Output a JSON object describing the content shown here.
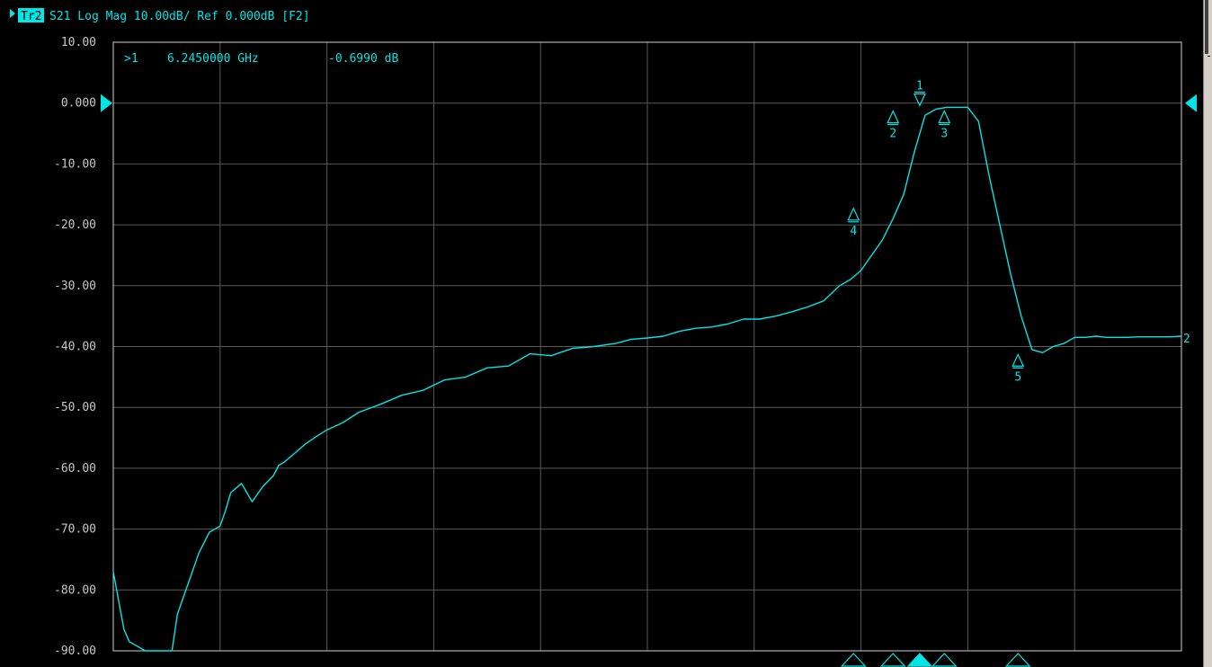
{
  "colors": {
    "trace": "#00e5e5",
    "grid": "#5a5a5a",
    "frame": "#cfcfcf",
    "label": "#c8c8c8",
    "background": "#000000"
  },
  "header": {
    "trace_tag": "Tr2",
    "description": "S21 Log Mag 10.00dB/ Ref 0.000dB [F2]"
  },
  "marker_readout": {
    "active_marker": ">1",
    "frequency": "6.2450000 GHz",
    "value": "-0.6990 dB"
  },
  "end_label": "2",
  "chart_data": {
    "type": "line",
    "y_tick_labels": [
      "10.00",
      "0.000",
      "-10.00",
      "-20.00",
      "-30.00",
      "-40.00",
      "-50.00",
      "-60.00",
      "-70.00",
      "-80.00",
      "-90.00"
    ],
    "ylim": [
      -90,
      10
    ],
    "y_per_div": 10,
    "x_divisions": 10,
    "reference_level": 0,
    "grid": true,
    "series": [
      {
        "trace": "Tr2 S21",
        "x": [
          0,
          0.1,
          0.15,
          0.3,
          0.45,
          0.55,
          0.6,
          0.7,
          0.8,
          0.9,
          1.0,
          1.05,
          1.1,
          1.2,
          1.3,
          1.4,
          1.5,
          1.55,
          1.6,
          1.7,
          1.8,
          1.9,
          2.0,
          2.15,
          2.3,
          2.5,
          2.7,
          2.9,
          3.1,
          3.3,
          3.5,
          3.7,
          3.9,
          4.1,
          4.3,
          4.5,
          4.7,
          4.85,
          5.0,
          5.15,
          5.3,
          5.45,
          5.6,
          5.75,
          5.9,
          6.05,
          6.2,
          6.35,
          6.5,
          6.65,
          6.8,
          6.9,
          7.0,
          7.1,
          7.2,
          7.3,
          7.4,
          7.5,
          7.6,
          7.7,
          7.8,
          7.9,
          8.0,
          8.1,
          8.2,
          8.3,
          8.4,
          8.5,
          8.6,
          8.7,
          8.8,
          8.9,
          9.0,
          9.1,
          9.2,
          9.3,
          9.4,
          9.5,
          9.6,
          9.7,
          9.8,
          9.9,
          10.0
        ],
        "y": [
          -77,
          -86.5,
          -88.5,
          -90,
          -90,
          -90,
          -84,
          -79,
          -74,
          -70.5,
          -69.5,
          -67,
          -64,
          -62.5,
          -65.5,
          -63,
          -61.2,
          -59.5,
          -59,
          -57.5,
          -56,
          -54.8,
          -53.7,
          -52.5,
          -50.8,
          -49.5,
          -48,
          -47.2,
          -45.5,
          -45,
          -43.5,
          -43.2,
          -41.2,
          -41.5,
          -40.3,
          -40,
          -39.5,
          -38.8,
          -38.6,
          -38.3,
          -37.5,
          -37,
          -36.8,
          -36.3,
          -35.5,
          -35.5,
          -35,
          -34.3,
          -33.5,
          -32.5,
          -30,
          -29,
          -27.5,
          -25,
          -22.5,
          -19,
          -15,
          -8,
          -2,
          -1,
          -0.7,
          -0.7,
          -0.7,
          -3,
          -12,
          -20,
          -28,
          -35,
          -40.5,
          -41,
          -40,
          -39.5,
          -38.5,
          -38.5,
          -38.3,
          -38.5,
          -38.5,
          -38.5,
          -38.4,
          -38.4,
          -38.4,
          -38.4,
          -38.3
        ]
      }
    ],
    "markers": [
      {
        "id": "1",
        "x": 7.55,
        "y": -0.699,
        "pointer": "down",
        "active": true
      },
      {
        "id": "2",
        "x": 7.3,
        "y": -1.0,
        "pointer": "up",
        "active": false
      },
      {
        "id": "3",
        "x": 7.78,
        "y": -1.0,
        "pointer": "up",
        "active": false
      },
      {
        "id": "4",
        "x": 6.93,
        "y": -17.0,
        "pointer": "up",
        "active": false
      },
      {
        "id": "5",
        "x": 8.47,
        "y": -41.0,
        "pointer": "up",
        "active": false
      }
    ],
    "reference_markers": [
      "left",
      "right"
    ]
  }
}
